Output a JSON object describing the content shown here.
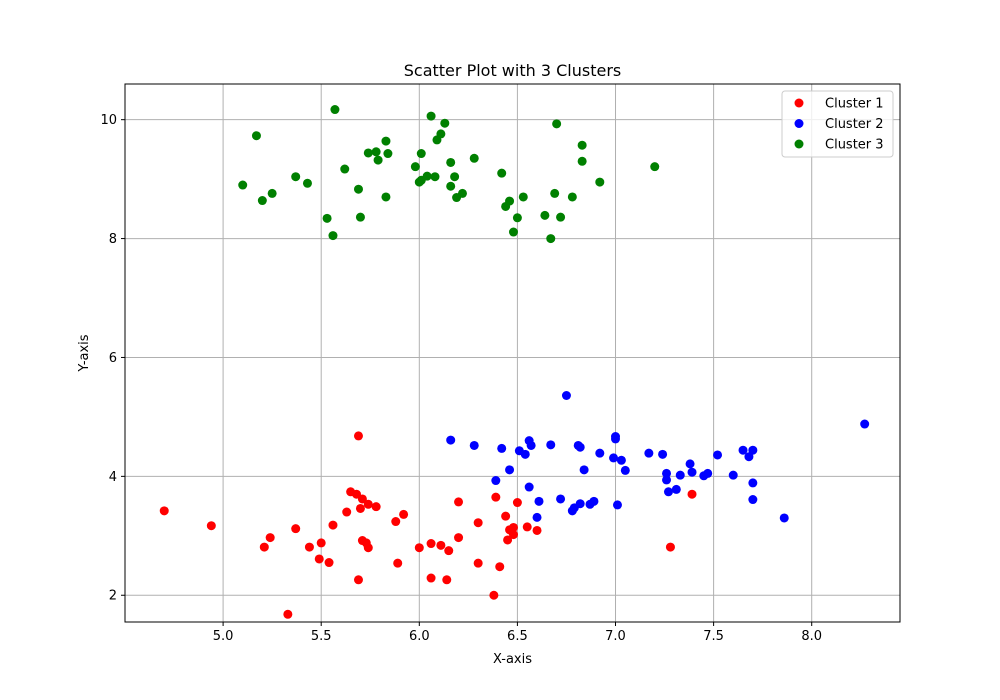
{
  "chart_data": {
    "type": "scatter",
    "title": "Scatter Plot with 3 Clusters",
    "xlabel": "X-axis",
    "ylabel": "Y-axis",
    "xlim": [
      4.5,
      8.45
    ],
    "ylim": [
      1.55,
      10.6
    ],
    "xticks": [
      5.0,
      5.5,
      6.0,
      6.5,
      7.0,
      7.5,
      8.0
    ],
    "yticks": [
      2,
      4,
      6,
      8,
      10
    ],
    "xtick_labels": [
      "5.0",
      "5.5",
      "6.0",
      "6.5",
      "7.0",
      "7.5",
      "8.0"
    ],
    "ytick_labels": [
      "2",
      "4",
      "6",
      "8",
      "10"
    ],
    "grid": true,
    "legend": "top-right",
    "series": [
      {
        "name": "Cluster 1",
        "color": "#ff0000",
        "points": [
          [
            4.7,
            3.42
          ],
          [
            4.94,
            3.17
          ],
          [
            5.21,
            2.81
          ],
          [
            5.24,
            2.97
          ],
          [
            5.33,
            1.68
          ],
          [
            5.37,
            3.12
          ],
          [
            5.44,
            2.81
          ],
          [
            5.49,
            2.61
          ],
          [
            5.5,
            2.88
          ],
          [
            5.54,
            2.55
          ],
          [
            5.56,
            3.18
          ],
          [
            5.63,
            3.4
          ],
          [
            5.65,
            3.74
          ],
          [
            5.68,
            3.7
          ],
          [
            5.69,
            2.26
          ],
          [
            5.69,
            4.68
          ],
          [
            5.7,
            3.46
          ],
          [
            5.71,
            3.62
          ],
          [
            5.71,
            2.92
          ],
          [
            5.73,
            2.88
          ],
          [
            5.74,
            2.8
          ],
          [
            5.74,
            3.53
          ],
          [
            5.78,
            3.49
          ],
          [
            5.88,
            3.24
          ],
          [
            5.89,
            2.54
          ],
          [
            5.92,
            3.36
          ],
          [
            6.0,
            2.8
          ],
          [
            6.06,
            2.87
          ],
          [
            6.06,
            2.29
          ],
          [
            6.11,
            2.84
          ],
          [
            6.14,
            2.26
          ],
          [
            6.15,
            2.75
          ],
          [
            6.2,
            2.97
          ],
          [
            6.2,
            3.57
          ],
          [
            6.3,
            3.22
          ],
          [
            6.3,
            2.54
          ],
          [
            6.38,
            2.0
          ],
          [
            6.39,
            3.65
          ],
          [
            6.41,
            2.48
          ],
          [
            6.44,
            3.33
          ],
          [
            6.45,
            2.93
          ],
          [
            6.46,
            3.1
          ],
          [
            6.48,
            3.02
          ],
          [
            6.48,
            3.14
          ],
          [
            6.5,
            3.56
          ],
          [
            6.55,
            3.15
          ],
          [
            6.6,
            3.09
          ],
          [
            7.28,
            2.81
          ],
          [
            7.39,
            3.7
          ]
        ]
      },
      {
        "name": "Cluster 2",
        "color": "#0000ff",
        "points": [
          [
            6.16,
            4.61
          ],
          [
            6.28,
            4.52
          ],
          [
            6.39,
            3.93
          ],
          [
            6.42,
            4.47
          ],
          [
            6.46,
            4.11
          ],
          [
            6.51,
            4.43
          ],
          [
            6.54,
            4.37
          ],
          [
            6.56,
            3.82
          ],
          [
            6.56,
            4.6
          ],
          [
            6.57,
            4.52
          ],
          [
            6.6,
            3.31
          ],
          [
            6.61,
            3.58
          ],
          [
            6.67,
            4.53
          ],
          [
            6.72,
            3.62
          ],
          [
            6.75,
            5.36
          ],
          [
            6.78,
            3.42
          ],
          [
            6.79,
            3.47
          ],
          [
            6.81,
            4.52
          ],
          [
            6.82,
            3.54
          ],
          [
            6.82,
            4.49
          ],
          [
            6.84,
            4.11
          ],
          [
            6.87,
            3.53
          ],
          [
            6.89,
            3.58
          ],
          [
            6.92,
            4.39
          ],
          [
            6.99,
            4.31
          ],
          [
            7.0,
            4.63
          ],
          [
            7.0,
            4.67
          ],
          [
            7.01,
            3.52
          ],
          [
            7.03,
            4.27
          ],
          [
            7.05,
            4.1
          ],
          [
            7.17,
            4.39
          ],
          [
            7.24,
            4.37
          ],
          [
            7.26,
            4.05
          ],
          [
            7.26,
            3.94
          ],
          [
            7.27,
            3.74
          ],
          [
            7.31,
            3.78
          ],
          [
            7.33,
            4.02
          ],
          [
            7.38,
            4.21
          ],
          [
            7.39,
            4.07
          ],
          [
            7.45,
            4.01
          ],
          [
            7.47,
            4.05
          ],
          [
            7.52,
            4.36
          ],
          [
            7.6,
            4.02
          ],
          [
            7.65,
            4.44
          ],
          [
            7.68,
            4.33
          ],
          [
            7.7,
            4.44
          ],
          [
            7.7,
            3.89
          ],
          [
            7.7,
            3.61
          ],
          [
            7.86,
            3.3
          ],
          [
            8.27,
            4.88
          ]
        ]
      },
      {
        "name": "Cluster 3",
        "color": "#008000",
        "points": [
          [
            5.1,
            8.9
          ],
          [
            5.17,
            9.73
          ],
          [
            5.2,
            8.64
          ],
          [
            5.25,
            8.76
          ],
          [
            5.37,
            9.04
          ],
          [
            5.43,
            8.93
          ],
          [
            5.53,
            8.34
          ],
          [
            5.56,
            8.05
          ],
          [
            5.57,
            10.17
          ],
          [
            5.62,
            9.17
          ],
          [
            5.69,
            8.83
          ],
          [
            5.7,
            8.36
          ],
          [
            5.74,
            9.44
          ],
          [
            5.78,
            9.46
          ],
          [
            5.79,
            9.32
          ],
          [
            5.83,
            8.7
          ],
          [
            5.83,
            9.64
          ],
          [
            5.84,
            9.43
          ],
          [
            5.98,
            9.21
          ],
          [
            6.0,
            8.95
          ],
          [
            6.01,
            9.43
          ],
          [
            6.01,
            8.98
          ],
          [
            6.04,
            9.05
          ],
          [
            6.06,
            10.06
          ],
          [
            6.08,
            9.04
          ],
          [
            6.09,
            9.66
          ],
          [
            6.11,
            9.76
          ],
          [
            6.13,
            9.94
          ],
          [
            6.16,
            8.88
          ],
          [
            6.16,
            9.28
          ],
          [
            6.18,
            9.04
          ],
          [
            6.19,
            8.69
          ],
          [
            6.22,
            8.76
          ],
          [
            6.28,
            9.35
          ],
          [
            6.42,
            9.1
          ],
          [
            6.44,
            8.54
          ],
          [
            6.46,
            8.63
          ],
          [
            6.48,
            8.11
          ],
          [
            6.5,
            8.35
          ],
          [
            6.53,
            8.7
          ],
          [
            6.64,
            8.39
          ],
          [
            6.67,
            8.0
          ],
          [
            6.69,
            8.76
          ],
          [
            6.7,
            9.93
          ],
          [
            6.72,
            8.36
          ],
          [
            6.78,
            8.7
          ],
          [
            6.83,
            9.57
          ],
          [
            6.83,
            9.3
          ],
          [
            6.92,
            8.95
          ],
          [
            7.2,
            9.21
          ]
        ]
      }
    ]
  }
}
